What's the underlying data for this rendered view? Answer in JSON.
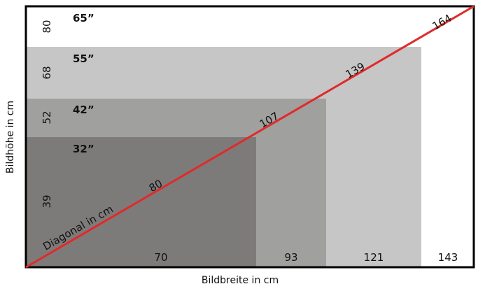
{
  "title": "",
  "axes": {
    "x_title": "Bildbreite in cm",
    "y_title": "Bildhöhe in cm"
  },
  "diagonal": {
    "label": "Diagonal in cm",
    "color": "#e02a2a"
  },
  "screens": [
    {
      "name": "32”",
      "width_label": "70",
      "height_label": "39",
      "diagonal_label": "80",
      "color": "#7d7b79"
    },
    {
      "name": "42”",
      "width_label": "93",
      "height_label": "52",
      "diagonal_label": "107",
      "color": "#a0a09f"
    },
    {
      "name": "55”",
      "width_label": "121",
      "height_label": "68",
      "diagonal_label": "139",
      "color": "#c6c6c6"
    },
    {
      "name": "65”",
      "width_label": "143",
      "height_label": "80",
      "diagonal_label": "164",
      "color": "#ffffff"
    }
  ],
  "chart_data": {
    "type": "diagram",
    "xlabel": "Bildbreite in cm",
    "ylabel": "Bildhöhe in cm",
    "screens": [
      {
        "size": "32”",
        "width_cm": 70,
        "height_cm": 39,
        "diagonal_cm": 80
      },
      {
        "size": "42”",
        "width_cm": 93,
        "height_cm": 52,
        "diagonal_cm": 107
      },
      {
        "size": "55”",
        "width_cm": 121,
        "height_cm": 68,
        "diagonal_cm": 139
      },
      {
        "size": "65”",
        "width_cm": 143,
        "height_cm": 80,
        "diagonal_cm": 164
      }
    ],
    "diagonal_label": "Diagonal in cm"
  }
}
